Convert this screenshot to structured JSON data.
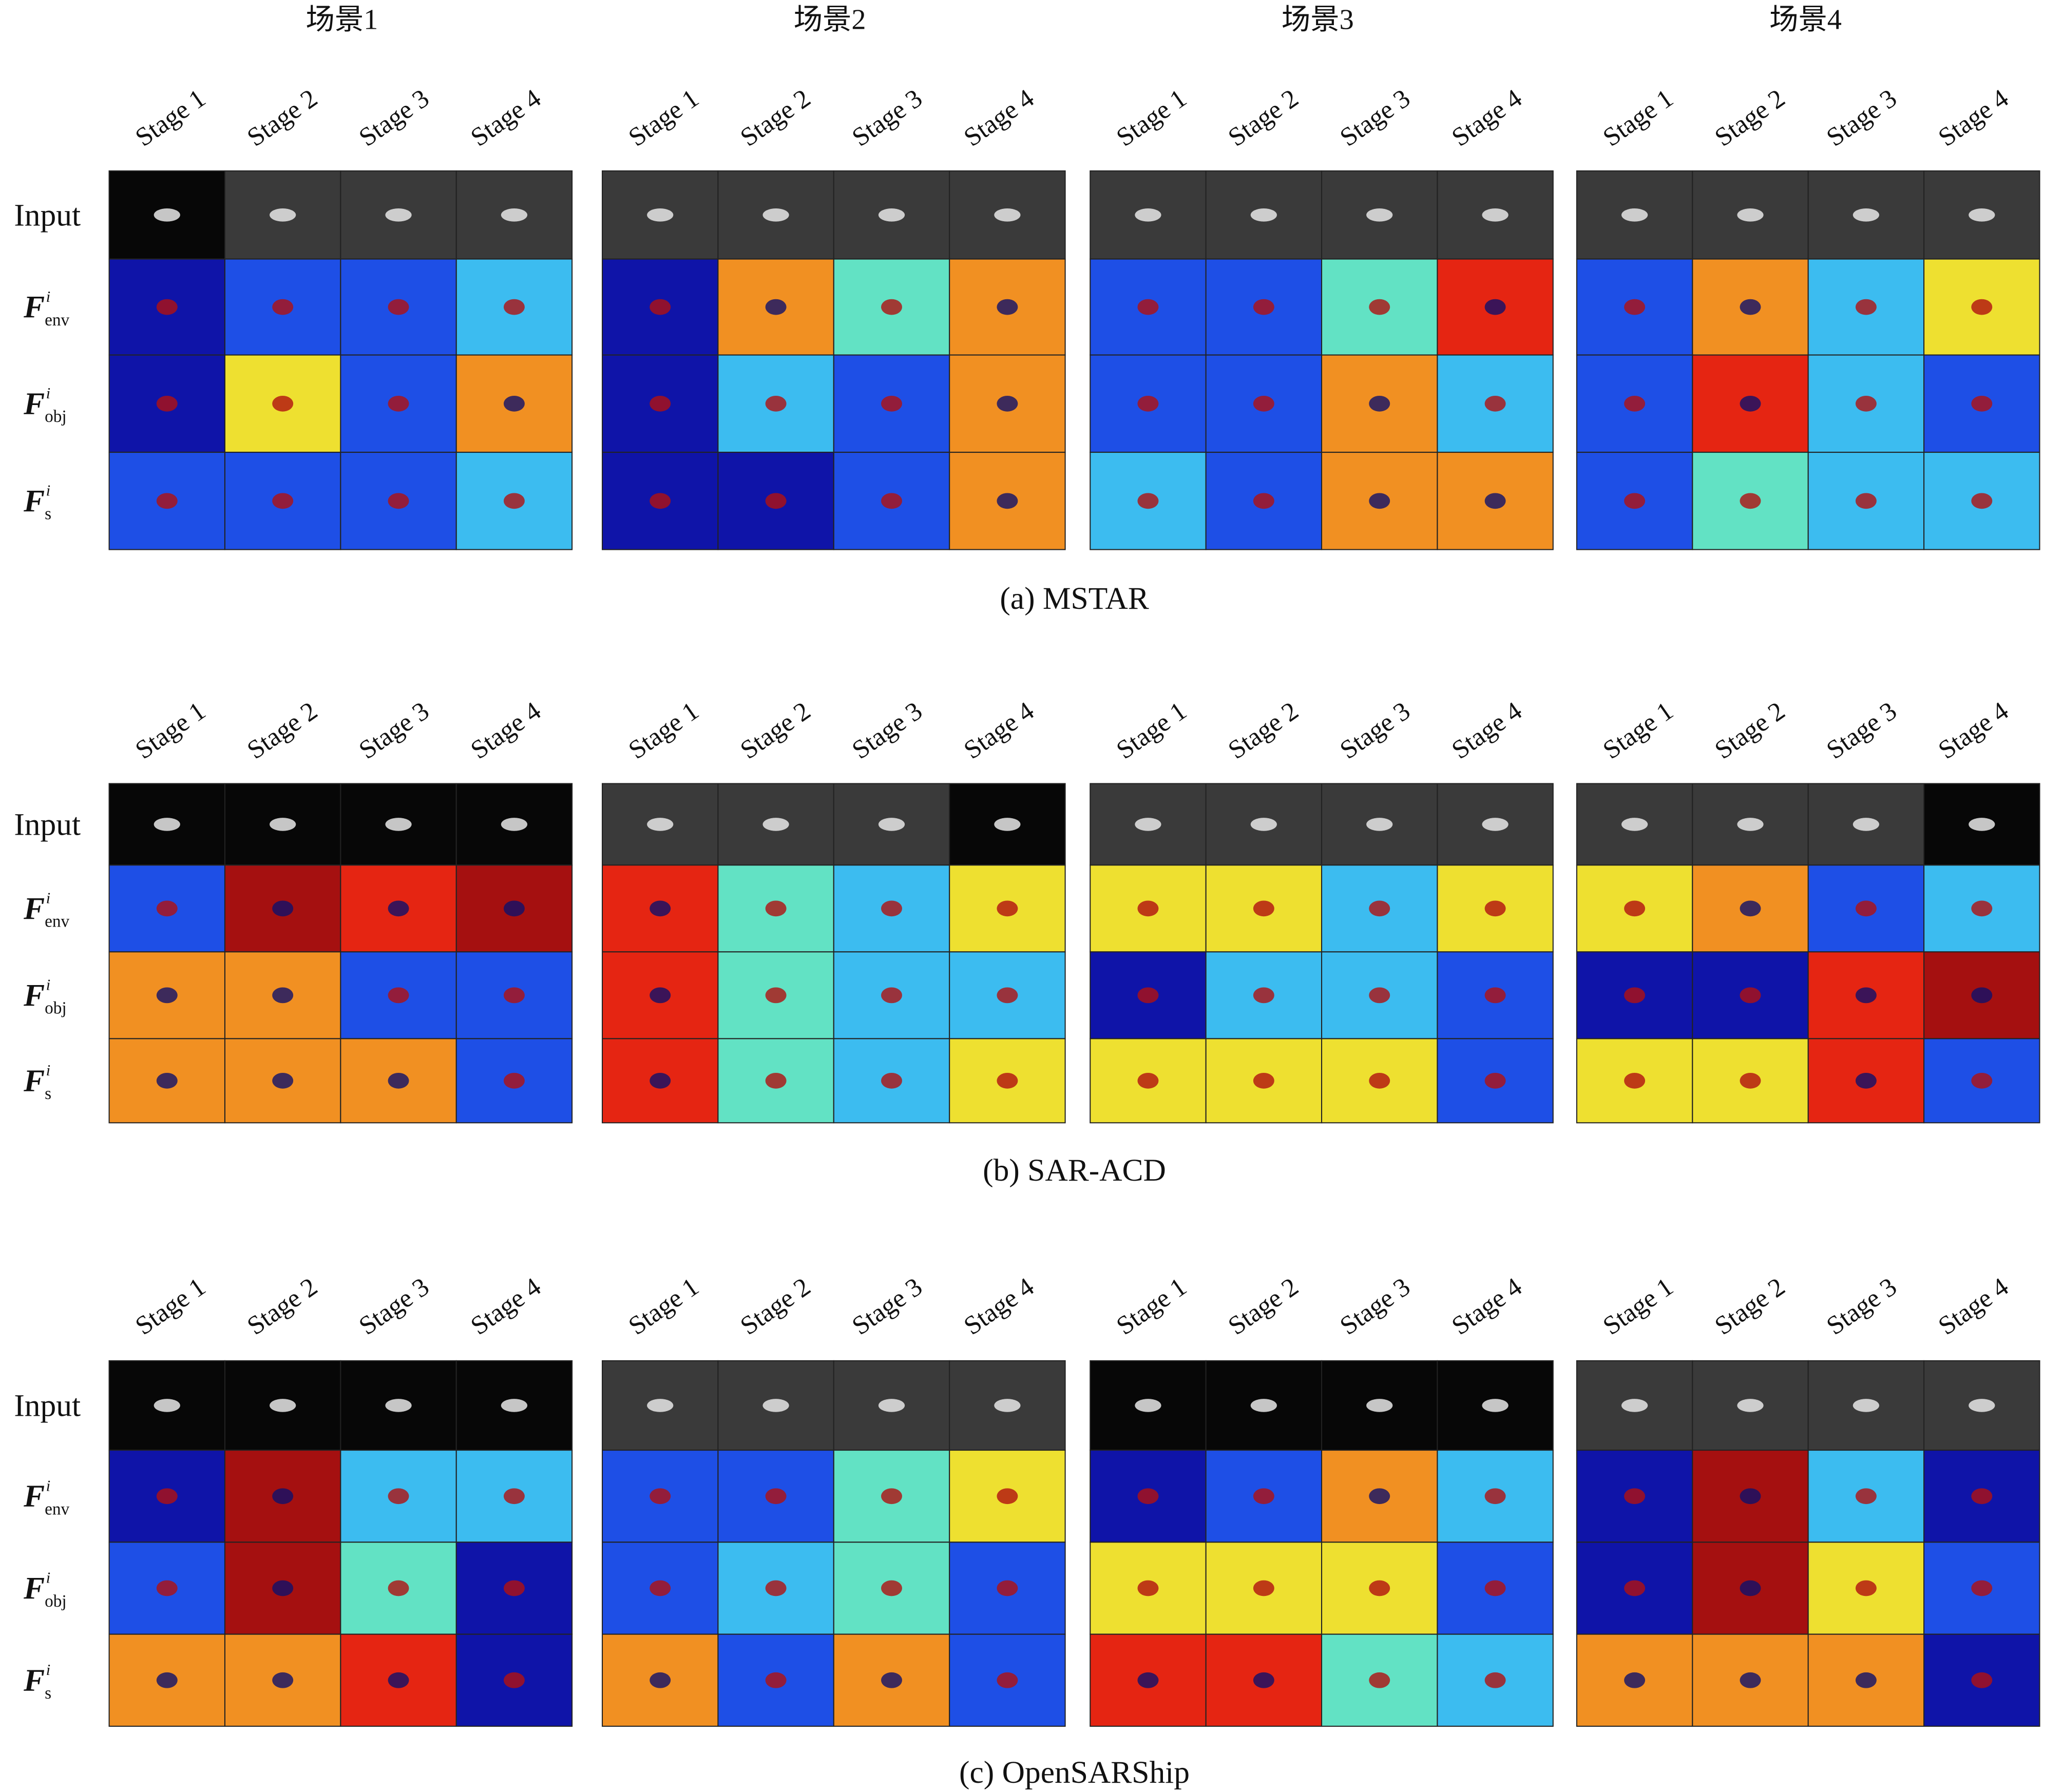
{
  "scenes": [
    "场景1",
    "场景2",
    "场景3",
    "场景4"
  ],
  "stages": [
    "Stage 1",
    "Stage 2",
    "Stage 3",
    "Stage 4"
  ],
  "rows": [
    {
      "text": "Input"
    },
    {
      "base": "F",
      "sup": "i",
      "sub": "env"
    },
    {
      "base": "F",
      "sup": "i",
      "sub": "obj"
    },
    {
      "base": "F",
      "sup": "i",
      "sub": "s"
    }
  ],
  "panels": [
    {
      "caption": "(a) MSTAR"
    },
    {
      "caption": "(b) SAR-ACD"
    },
    {
      "caption": "(c) OpenSARShip"
    }
  ]
}
